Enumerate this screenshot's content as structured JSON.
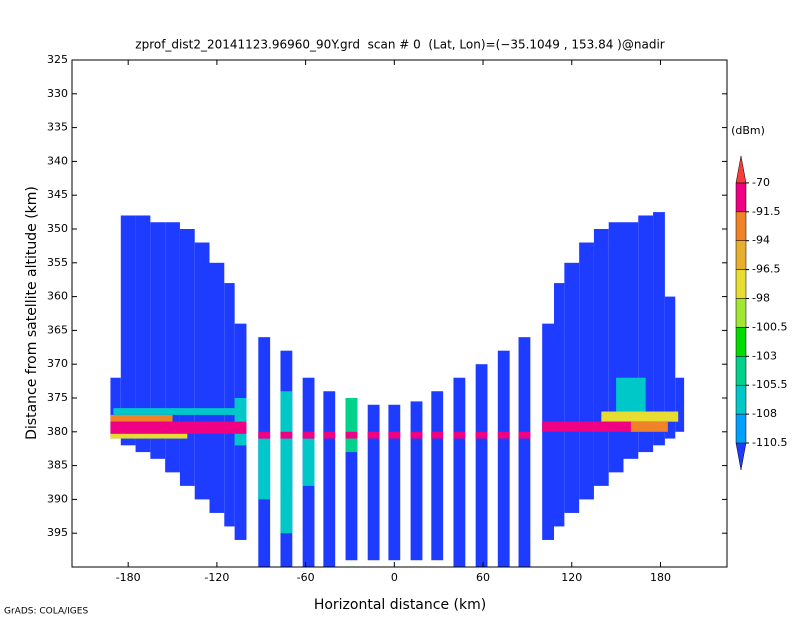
{
  "chart_data": {
    "type": "heatmap",
    "title": "zprof_dist2_20141123.96960_90Y.grd  scan # 0  (Lat, Lon)=(−35.1049 , 153.84 )@nadir",
    "x_label": "Horizontal distance (km)",
    "y_label": "Distance from satellite altitude (km)",
    "colorbar_label": "(dBm)",
    "credit": "GrADS: COLA/IGES",
    "xlim": [
      -218,
      225
    ],
    "ylim": [
      325,
      400
    ],
    "xticks": [
      -180,
      -120,
      -60,
      0,
      60,
      120,
      180
    ],
    "yticks": [
      325,
      330,
      335,
      340,
      345,
      350,
      355,
      360,
      365,
      370,
      375,
      380,
      385,
      390,
      395
    ],
    "levels": [
      -110.5,
      -108,
      -105.5,
      -103,
      -100.5,
      -98,
      -96.5,
      -94,
      -91.5,
      -70
    ],
    "colors": [
      "#1e3cff",
      "#00a0ff",
      "#00c8c8",
      "#00d28c",
      "#00dc00",
      "#a0e632",
      "#e6dc32",
      "#e6af2d",
      "#f08228",
      "#f00082",
      "#fa3c3c"
    ],
    "cells": [
      [
        -192,
        -185,
        372,
        381,
        -115
      ],
      [
        -185,
        -175,
        348,
        382,
        -115
      ],
      [
        -175,
        -165,
        348,
        383,
        -115
      ],
      [
        -165,
        -155,
        349,
        384,
        -115
      ],
      [
        -155,
        -145,
        349,
        386,
        -115
      ],
      [
        -145,
        -135,
        350,
        388,
        -115
      ],
      [
        -135,
        -125,
        352,
        390,
        -115
      ],
      [
        -125,
        -115,
        355,
        392,
        -115
      ],
      [
        -115,
        -108,
        358,
        394,
        -115
      ],
      [
        -108,
        -100,
        364,
        396,
        -115
      ],
      [
        -92,
        -84,
        366,
        400,
        -115
      ],
      [
        -77,
        -69,
        368,
        400,
        -115
      ],
      [
        -62,
        -54,
        372,
        400,
        -115
      ],
      [
        -48,
        -40,
        374,
        400,
        -115
      ],
      [
        -33,
        -25,
        375,
        399,
        -115
      ],
      [
        -18,
        -10,
        376,
        399,
        -115
      ],
      [
        -4,
        4,
        376,
        399,
        -115
      ],
      [
        11,
        19,
        375.5,
        399,
        -115
      ],
      [
        25,
        33,
        374,
        399,
        -115
      ],
      [
        40,
        48,
        372,
        400,
        -115
      ],
      [
        55,
        63,
        370,
        400,
        -115
      ],
      [
        70,
        78,
        368,
        400,
        -115
      ],
      [
        84,
        92,
        366,
        400,
        -115
      ],
      [
        100,
        108,
        364,
        396,
        -115
      ],
      [
        108,
        115,
        358,
        394,
        -115
      ],
      [
        115,
        125,
        355,
        392,
        -115
      ],
      [
        125,
        135,
        352,
        390,
        -115
      ],
      [
        135,
        145,
        350,
        388,
        -115
      ],
      [
        145,
        155,
        349,
        386,
        -115
      ],
      [
        155,
        165,
        349,
        384,
        -115
      ],
      [
        165,
        175,
        348,
        383,
        -115
      ],
      [
        175,
        183,
        347.5,
        382,
        -115
      ],
      [
        183,
        190,
        360,
        381,
        -115
      ],
      [
        190,
        196,
        372,
        380,
        -115
      ],
      [
        -92,
        -84,
        381,
        390,
        -107
      ],
      [
        -77,
        -69,
        374,
        395,
        -107
      ],
      [
        -62,
        -54,
        381,
        388,
        -107
      ],
      [
        -33,
        -25,
        375,
        383,
        -105
      ],
      [
        -108,
        -100,
        375,
        382,
        -107
      ],
      [
        -190,
        -100,
        376.5,
        377.5,
        -107
      ],
      [
        -192,
        -150,
        377.5,
        378.5,
        -93
      ],
      [
        -192,
        -100,
        378.5,
        380.3,
        -85
      ],
      [
        -192,
        -140,
        380.3,
        381,
        -97
      ],
      [
        150,
        170,
        372,
        378,
        -107
      ],
      [
        140,
        192,
        377,
        378.5,
        -97
      ],
      [
        100,
        175,
        378.5,
        380,
        -85
      ],
      [
        160,
        185,
        378.5,
        380,
        -93
      ],
      [
        -92,
        -84,
        380,
        381,
        -85
      ],
      [
        -77,
        -69,
        380,
        381,
        -85
      ],
      [
        -62,
        -54,
        380,
        381,
        -85
      ],
      [
        -48,
        -40,
        380,
        381,
        -85
      ],
      [
        -33,
        -25,
        380,
        381,
        -85
      ],
      [
        -18,
        -10,
        380,
        381,
        -85
      ],
      [
        -4,
        4,
        380,
        381,
        -85
      ],
      [
        11,
        19,
        380,
        381,
        -85
      ],
      [
        25,
        33,
        380,
        381,
        -85
      ],
      [
        40,
        48,
        380,
        381,
        -85
      ],
      [
        55,
        63,
        380,
        381,
        -85
      ],
      [
        70,
        78,
        380,
        381,
        -85
      ],
      [
        84,
        92,
        380,
        381,
        -85
      ]
    ]
  }
}
